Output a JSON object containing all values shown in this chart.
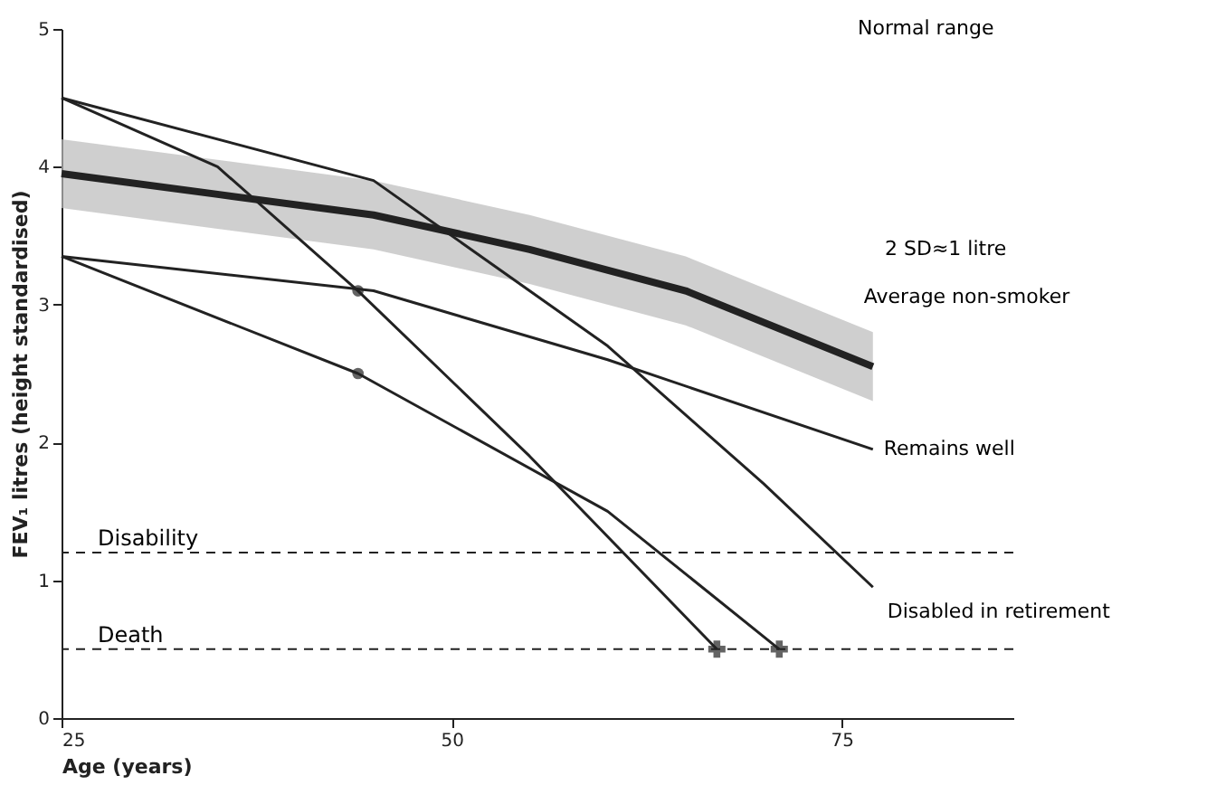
{
  "chart_data": {
    "type": "line",
    "xlabel": "Age (years)",
    "ylabel": "FEV₁ litres (height standardised)",
    "xlim": [
      25,
      86
    ],
    "ylim": [
      0,
      5
    ],
    "xticks": [
      25,
      50,
      75
    ],
    "yticks": [
      0,
      1,
      2,
      3,
      4,
      5
    ],
    "grid": false,
    "line_style": "solid",
    "marker": "none",
    "series": [
      {
        "name": "Average non-smoker",
        "color": "#222222",
        "x": [
          25,
          35,
          45,
          55,
          65,
          77
        ],
        "values": [
          3.95,
          3.8,
          3.65,
          3.4,
          3.1,
          2.55
        ],
        "lower": [
          3.7,
          3.55,
          3.4,
          3.15,
          2.85,
          2.3
        ],
        "upper": [
          4.2,
          4.05,
          3.9,
          3.65,
          3.35,
          2.8
        ]
      },
      {
        "name": "Remains well",
        "color": "#222222",
        "x": [
          25,
          45,
          60,
          77
        ],
        "values": [
          3.35,
          3.1,
          2.6,
          1.95
        ]
      },
      {
        "name": "Disabled in retirement",
        "color": "#222222",
        "x": [
          25,
          45,
          60,
          70,
          77
        ],
        "values": [
          4.5,
          3.9,
          2.7,
          1.7,
          0.95
        ]
      },
      {
        "color": "#222222",
        "x": [
          25,
          35,
          44,
          55,
          67
        ],
        "values": [
          4.5,
          4.0,
          3.1,
          1.9,
          0.5
        ]
      },
      {
        "color": "#222222",
        "x": [
          25,
          44,
          60,
          71
        ],
        "values": [
          3.35,
          2.5,
          1.5,
          0.5
        ]
      },
      {
        "type": "scatter",
        "marker": "circle",
        "color": "#222222",
        "x": [
          44,
          44
        ],
        "values": [
          3.1,
          2.5
        ]
      },
      {
        "type": "scatter",
        "marker": "cross",
        "color": "#222222",
        "x": [
          67,
          71
        ],
        "values": [
          0.5,
          0.5
        ]
      }
    ],
    "ref_lines": [
      {
        "axis": "y",
        "value": 1.2,
        "label": "Disability",
        "line_style": "dashed",
        "color": "#222222"
      },
      {
        "axis": "y",
        "value": 0.5,
        "label": "Death",
        "line_style": "dashed",
        "color": "#222222"
      }
    ],
    "annotations": [
      "Normal range",
      "2 SD≈1 litre"
    ]
  }
}
